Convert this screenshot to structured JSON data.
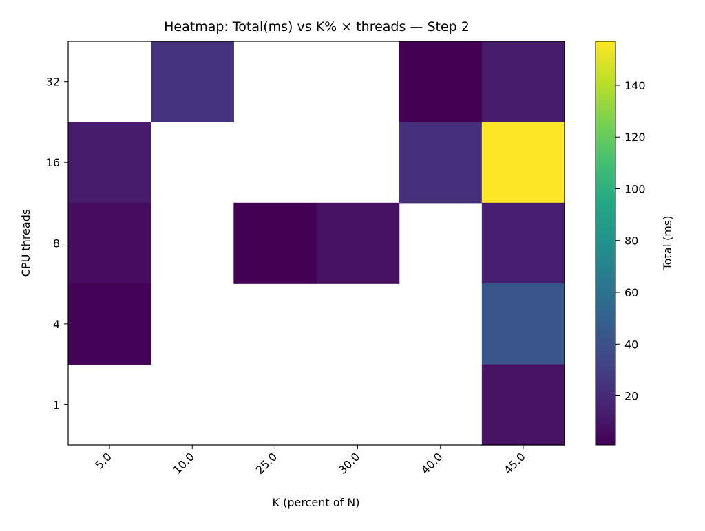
{
  "chart_data": {
    "type": "heatmap",
    "title": "Heatmap: Total(ms) vs K% × threads — Step 2",
    "xlabel": "K (percent of N)",
    "ylabel": "CPU threads",
    "x_categories": [
      "5.0",
      "10.0",
      "25.0",
      "30.0",
      "40.0",
      "45.0"
    ],
    "y_categories": [
      "32",
      "16",
      "8",
      "4",
      "1"
    ],
    "values": [
      [
        null,
        24,
        null,
        null,
        1,
        13
      ],
      [
        13,
        null,
        null,
        null,
        22,
        157
      ],
      [
        6,
        null,
        1,
        8,
        null,
        14
      ],
      [
        2,
        null,
        null,
        null,
        null,
        42
      ],
      [
        null,
        null,
        null,
        null,
        null,
        9
      ]
    ],
    "colorbar": {
      "label": "Total (ms)",
      "min": 1,
      "max": 157,
      "ticks": [
        "20",
        "40",
        "60",
        "80",
        "100",
        "120",
        "140"
      ],
      "colormap": "viridis"
    },
    "grid": false
  }
}
